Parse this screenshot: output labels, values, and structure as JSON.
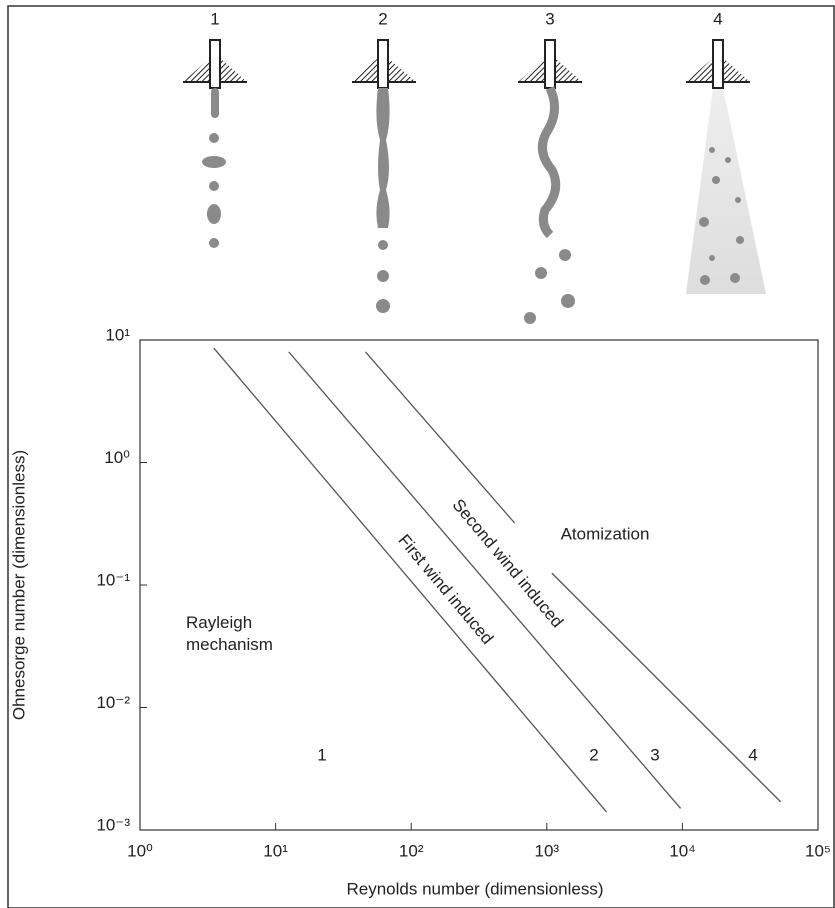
{
  "illustration": {
    "labels": [
      "1",
      "2",
      "3",
      "4"
    ]
  },
  "chart_data": {
    "type": "line",
    "x_label": "Reynolds number (dimensionless)",
    "y_label": "Ohnesorge number (dimensionless)",
    "log_x": true,
    "log_y": true,
    "xlim": [
      1,
      100000
    ],
    "xticks": [
      {
        "value": 1,
        "label": "10⁰"
      },
      {
        "value": 10,
        "label": "10¹"
      },
      {
        "value": 100,
        "label": "10²"
      },
      {
        "value": 1000,
        "label": "10³"
      },
      {
        "value": 10000,
        "label": "10⁴"
      },
      {
        "value": 100000,
        "label": "10⁵"
      }
    ],
    "ylim": [
      0.001,
      10
    ],
    "yticks": [
      {
        "value": 0.001,
        "label": "10⁻³"
      },
      {
        "value": 0.01,
        "label": "10⁻²"
      },
      {
        "value": 0.1,
        "label": "10⁻¹"
      },
      {
        "value": 1,
        "label": "10⁰"
      },
      {
        "value": 10,
        "label": "10¹"
      }
    ],
    "series": [
      {
        "color": "#555555",
        "x": [
          3.5,
          2760
        ],
        "values": [
          8.6,
          0.0014
        ]
      },
      {
        "color": "#555555",
        "x": [
          12.5,
          9700
        ],
        "values": [
          8.0,
          0.0015
        ]
      },
      {
        "color": "#555555",
        "x": [
          46,
          580,
          null,
          1090,
          53000
        ],
        "values": [
          8,
          0.32,
          null,
          0.125,
          0.0017
        ]
      }
    ],
    "annotations": [
      "Rayleigh mechanism",
      "First wind induced",
      "Second wind induced",
      "Atomization",
      "1",
      "2",
      "3",
      "4"
    ]
  }
}
